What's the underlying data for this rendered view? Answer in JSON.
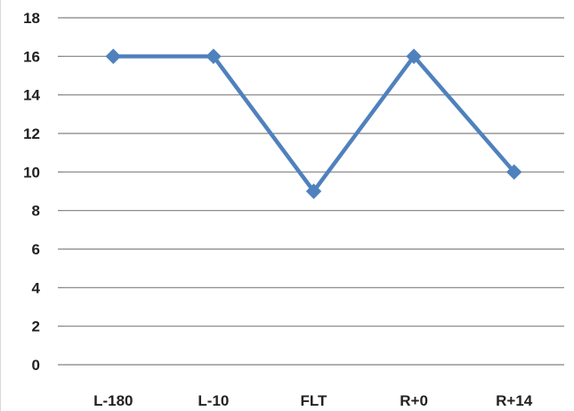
{
  "chart_data": {
    "type": "line",
    "title": "",
    "xlabel": "",
    "ylabel": "",
    "categories": [
      "L-180",
      "L-10",
      "FLT",
      "R+0",
      "R+14"
    ],
    "series": [
      {
        "values": [
          16,
          16,
          9,
          16,
          10
        ],
        "color": "#4f81bd",
        "marker": "diamond"
      }
    ],
    "ylim": [
      0,
      18
    ],
    "yticks": [
      0,
      2,
      4,
      6,
      8,
      10,
      12,
      14,
      16,
      18
    ],
    "grid": true,
    "legend": "none",
    "gridline_color": "#808080",
    "text_color": "#222222"
  }
}
